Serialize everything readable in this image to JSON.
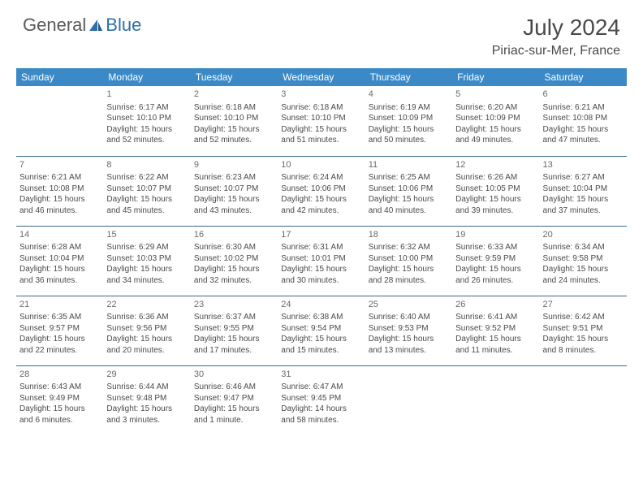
{
  "logo": {
    "text1": "General",
    "text2": "Blue"
  },
  "title": "July 2024",
  "location": "Piriac-sur-Mer, France",
  "colors": {
    "header_bg": "#3b89c7",
    "header_text": "#ffffff",
    "row_border": "#3b6a8f",
    "body_text": "#4a4a4a",
    "logo_gray": "#5a5a5a",
    "logo_blue": "#2f6fa8"
  },
  "weekdays": [
    "Sunday",
    "Monday",
    "Tuesday",
    "Wednesday",
    "Thursday",
    "Friday",
    "Saturday"
  ],
  "weeks": [
    [
      {
        "day": "",
        "lines": []
      },
      {
        "day": "1",
        "lines": [
          "Sunrise: 6:17 AM",
          "Sunset: 10:10 PM",
          "Daylight: 15 hours",
          "and 52 minutes."
        ]
      },
      {
        "day": "2",
        "lines": [
          "Sunrise: 6:18 AM",
          "Sunset: 10:10 PM",
          "Daylight: 15 hours",
          "and 52 minutes."
        ]
      },
      {
        "day": "3",
        "lines": [
          "Sunrise: 6:18 AM",
          "Sunset: 10:10 PM",
          "Daylight: 15 hours",
          "and 51 minutes."
        ]
      },
      {
        "day": "4",
        "lines": [
          "Sunrise: 6:19 AM",
          "Sunset: 10:09 PM",
          "Daylight: 15 hours",
          "and 50 minutes."
        ]
      },
      {
        "day": "5",
        "lines": [
          "Sunrise: 6:20 AM",
          "Sunset: 10:09 PM",
          "Daylight: 15 hours",
          "and 49 minutes."
        ]
      },
      {
        "day": "6",
        "lines": [
          "Sunrise: 6:21 AM",
          "Sunset: 10:08 PM",
          "Daylight: 15 hours",
          "and 47 minutes."
        ]
      }
    ],
    [
      {
        "day": "7",
        "lines": [
          "Sunrise: 6:21 AM",
          "Sunset: 10:08 PM",
          "Daylight: 15 hours",
          "and 46 minutes."
        ]
      },
      {
        "day": "8",
        "lines": [
          "Sunrise: 6:22 AM",
          "Sunset: 10:07 PM",
          "Daylight: 15 hours",
          "and 45 minutes."
        ]
      },
      {
        "day": "9",
        "lines": [
          "Sunrise: 6:23 AM",
          "Sunset: 10:07 PM",
          "Daylight: 15 hours",
          "and 43 minutes."
        ]
      },
      {
        "day": "10",
        "lines": [
          "Sunrise: 6:24 AM",
          "Sunset: 10:06 PM",
          "Daylight: 15 hours",
          "and 42 minutes."
        ]
      },
      {
        "day": "11",
        "lines": [
          "Sunrise: 6:25 AM",
          "Sunset: 10:06 PM",
          "Daylight: 15 hours",
          "and 40 minutes."
        ]
      },
      {
        "day": "12",
        "lines": [
          "Sunrise: 6:26 AM",
          "Sunset: 10:05 PM",
          "Daylight: 15 hours",
          "and 39 minutes."
        ]
      },
      {
        "day": "13",
        "lines": [
          "Sunrise: 6:27 AM",
          "Sunset: 10:04 PM",
          "Daylight: 15 hours",
          "and 37 minutes."
        ]
      }
    ],
    [
      {
        "day": "14",
        "lines": [
          "Sunrise: 6:28 AM",
          "Sunset: 10:04 PM",
          "Daylight: 15 hours",
          "and 36 minutes."
        ]
      },
      {
        "day": "15",
        "lines": [
          "Sunrise: 6:29 AM",
          "Sunset: 10:03 PM",
          "Daylight: 15 hours",
          "and 34 minutes."
        ]
      },
      {
        "day": "16",
        "lines": [
          "Sunrise: 6:30 AM",
          "Sunset: 10:02 PM",
          "Daylight: 15 hours",
          "and 32 minutes."
        ]
      },
      {
        "day": "17",
        "lines": [
          "Sunrise: 6:31 AM",
          "Sunset: 10:01 PM",
          "Daylight: 15 hours",
          "and 30 minutes."
        ]
      },
      {
        "day": "18",
        "lines": [
          "Sunrise: 6:32 AM",
          "Sunset: 10:00 PM",
          "Daylight: 15 hours",
          "and 28 minutes."
        ]
      },
      {
        "day": "19",
        "lines": [
          "Sunrise: 6:33 AM",
          "Sunset: 9:59 PM",
          "Daylight: 15 hours",
          "and 26 minutes."
        ]
      },
      {
        "day": "20",
        "lines": [
          "Sunrise: 6:34 AM",
          "Sunset: 9:58 PM",
          "Daylight: 15 hours",
          "and 24 minutes."
        ]
      }
    ],
    [
      {
        "day": "21",
        "lines": [
          "Sunrise: 6:35 AM",
          "Sunset: 9:57 PM",
          "Daylight: 15 hours",
          "and 22 minutes."
        ]
      },
      {
        "day": "22",
        "lines": [
          "Sunrise: 6:36 AM",
          "Sunset: 9:56 PM",
          "Daylight: 15 hours",
          "and 20 minutes."
        ]
      },
      {
        "day": "23",
        "lines": [
          "Sunrise: 6:37 AM",
          "Sunset: 9:55 PM",
          "Daylight: 15 hours",
          "and 17 minutes."
        ]
      },
      {
        "day": "24",
        "lines": [
          "Sunrise: 6:38 AM",
          "Sunset: 9:54 PM",
          "Daylight: 15 hours",
          "and 15 minutes."
        ]
      },
      {
        "day": "25",
        "lines": [
          "Sunrise: 6:40 AM",
          "Sunset: 9:53 PM",
          "Daylight: 15 hours",
          "and 13 minutes."
        ]
      },
      {
        "day": "26",
        "lines": [
          "Sunrise: 6:41 AM",
          "Sunset: 9:52 PM",
          "Daylight: 15 hours",
          "and 11 minutes."
        ]
      },
      {
        "day": "27",
        "lines": [
          "Sunrise: 6:42 AM",
          "Sunset: 9:51 PM",
          "Daylight: 15 hours",
          "and 8 minutes."
        ]
      }
    ],
    [
      {
        "day": "28",
        "lines": [
          "Sunrise: 6:43 AM",
          "Sunset: 9:49 PM",
          "Daylight: 15 hours",
          "and 6 minutes."
        ]
      },
      {
        "day": "29",
        "lines": [
          "Sunrise: 6:44 AM",
          "Sunset: 9:48 PM",
          "Daylight: 15 hours",
          "and 3 minutes."
        ]
      },
      {
        "day": "30",
        "lines": [
          "Sunrise: 6:46 AM",
          "Sunset: 9:47 PM",
          "Daylight: 15 hours",
          "and 1 minute."
        ]
      },
      {
        "day": "31",
        "lines": [
          "Sunrise: 6:47 AM",
          "Sunset: 9:45 PM",
          "Daylight: 14 hours",
          "and 58 minutes."
        ]
      },
      {
        "day": "",
        "lines": []
      },
      {
        "day": "",
        "lines": []
      },
      {
        "day": "",
        "lines": []
      }
    ]
  ]
}
